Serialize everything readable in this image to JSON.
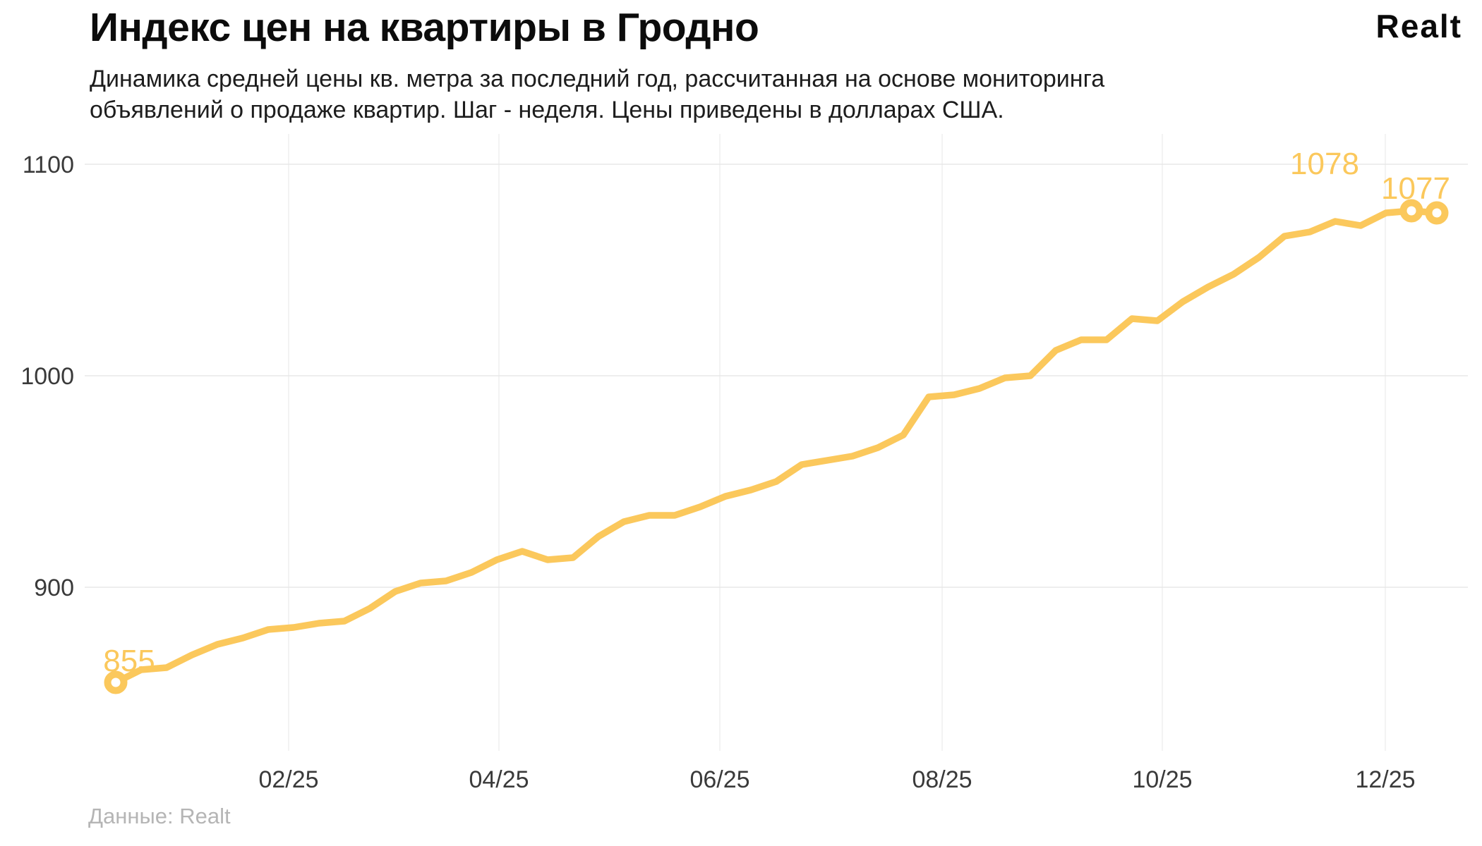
{
  "header": {
    "title": "Индекс цен на квартиры в Гродно",
    "subtitle_line1": "Динамика средней цены кв. метра за последний год, рассчитанная на основе мониторинга",
    "subtitle_line2": "объявлений о продаже квартир. Шаг - неделя. Цены приведены в долларах США.",
    "logo_text": "Realt"
  },
  "footer": {
    "source": "Данные: Realt"
  },
  "chart_data": {
    "type": "line",
    "title": "Индекс цен на квартиры в Гродно",
    "x_step": "неделя",
    "x_ticks": [
      "02/25",
      "04/25",
      "06/25",
      "08/25",
      "10/25",
      "12/25"
    ],
    "y_ticks": [
      900,
      1000,
      1100
    ],
    "ylim": [
      815,
      1115
    ],
    "grid": true,
    "legend": false,
    "line_color": "#FBC85C",
    "grid_color_h": "#e8e8e8",
    "grid_color_v": "#efefef",
    "values": [
      855,
      861,
      862,
      868,
      873,
      876,
      880,
      881,
      883,
      884,
      890,
      898,
      902,
      903,
      907,
      913,
      917,
      913,
      914,
      924,
      931,
      934,
      934,
      938,
      943,
      946,
      950,
      958,
      960,
      962,
      966,
      972,
      990,
      991,
      994,
      999,
      1000,
      1012,
      1017,
      1017,
      1027,
      1026,
      1035,
      1042,
      1048,
      1056,
      1066,
      1068,
      1073,
      1071,
      1077,
      1078,
      1077
    ],
    "annotations": [
      {
        "point_index": 0,
        "label": "855"
      },
      {
        "point_index": 51,
        "label": "1078"
      },
      {
        "point_index": 52,
        "label": "1077"
      }
    ]
  }
}
